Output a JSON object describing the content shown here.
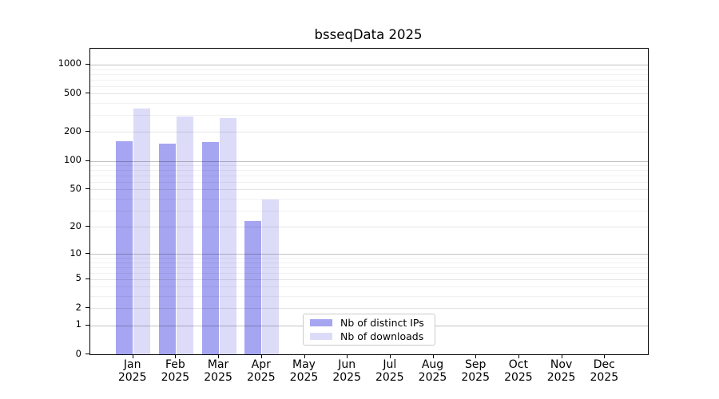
{
  "chart_data": {
    "type": "bar",
    "title": "bsseqData 2025",
    "categories": [
      "Jan",
      "Feb",
      "Mar",
      "Apr",
      "May",
      "Jun",
      "Jul",
      "Aug",
      "Sep",
      "Oct",
      "Nov",
      "Dec"
    ],
    "year_label": "2025",
    "series": [
      {
        "name": "Nb of distinct IPs",
        "color": "#a5a5f1",
        "values": [
          160,
          152,
          158,
          23,
          null,
          null,
          null,
          null,
          null,
          null,
          null,
          null
        ]
      },
      {
        "name": "Nb of downloads",
        "color": "#dcdcf9",
        "values": [
          348,
          290,
          278,
          39,
          null,
          null,
          null,
          null,
          null,
          null,
          null,
          null
        ]
      }
    ],
    "xlabel": "",
    "ylabel": "",
    "yticks": [
      0,
      1,
      2,
      5,
      10,
      20,
      50,
      100,
      200,
      500,
      1000
    ],
    "yscale": "log1p",
    "ylim": [
      0,
      1460
    ],
    "grid": true,
    "legend_position": "inside-bottom-center"
  }
}
